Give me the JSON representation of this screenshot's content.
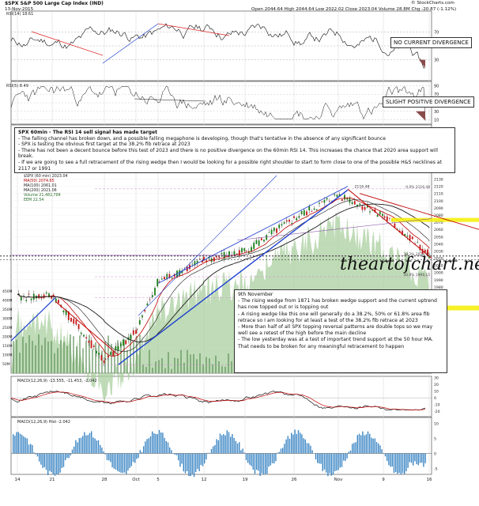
{
  "header": {
    "symbol": "$SPX S&P 500 Large Cap Index (IND)",
    "date": "13-Nov-2015",
    "quote": "Open 2044.64  High 2044.64  Low 2022.02  Close 2023.04  Volume 28.8M  Chg -20.87 (-1.12%)",
    "credit": "© StockCharts.com"
  },
  "panels": {
    "rsi14": {
      "legend": "RSI(14) 18.61",
      "label": "NO CURRENT DIVERGENCE"
    },
    "rsi5": {
      "legend": "RSI(5) 8.49",
      "label": "SLIGHT POSITIVE DIVERGENCE"
    },
    "price_legend": [
      "$SPX (60 min) 2023.04",
      "MA(50) 2074.65",
      "MA(100) 2061.01",
      "MA(200) 2021.06",
      "Volume 21,482,784",
      "EEM 22.54"
    ],
    "macd1": {
      "legend": "MACD(12,26,9) -13.555, -11.453, -2.042"
    },
    "macd2": {
      "legend": "MACD(12,26,9) Hist -2.042"
    }
  },
  "annotations": {
    "top": {
      "title": "SPX 60min - The RSI 14 sell signal has made target",
      "lines": [
        "- The falling channel has broken down, and a possible falling megaphone is developing, though that's tentative in the absence of any significant bounce",
        "- SPX is testing the obvious first target at the 38.2% fib retrace at 2023",
        "- There has not been a decent bounce before this test of 2023 and there is no positive divergence on the 60min RSI 14. This increases the chance that 2020 area support will break.",
        "- If we are going to see a full retracement of the rising wedge then I would be looking for a possible right shoulder to start to form close to one of the possible H&S necklines at 2117 or 1991"
      ]
    },
    "bottom": {
      "title": "9th November",
      "lines": [
        "- The rising wedge from 1871 has broken wedge support and the current uptrend has now topped out or is topping out",
        "- A rising wedge like this one will generally do a 38.2%, 50% or 61.8% area fib retrace so I am looking for at least a test of the 38.2% fib retrace at 2023",
        "- More than half of all SPX topping reversal patterns are double tops so we may well see a retest of the high before the main decline",
        "- The low yesterday was at a test of important trend support at the 50 hour MA. That needs to be broken for any meaningful retracement to happen"
      ]
    }
  },
  "watermark": "theartofchart.net",
  "fib_labels": [
    "0.0% 2116.48",
    "38.2% 2023.04",
    "50.0% 1994.15",
    "61.8% 1965.26",
    "100.0% 1871.91"
  ],
  "top_label": "2116.48",
  "chart_data": [
    {
      "type": "line",
      "panel": "RSI(14)",
      "y_range": [
        0,
        100
      ],
      "y_ticks": [
        70,
        50,
        30
      ],
      "last_value": 18.61
    },
    {
      "type": "line",
      "panel": "RSI(5)",
      "y_range": [
        0,
        100
      ],
      "y_ticks": [
        90,
        70,
        50,
        30,
        10
      ],
      "last_value": 8.49
    },
    {
      "type": "bar",
      "panel": "price 60min candlesticks",
      "y_range": [
        1860,
        2135
      ],
      "y_ticks": [
        2130,
        2120,
        2110,
        2100,
        2090,
        2080,
        2070,
        2060,
        2050,
        2040,
        2030,
        2020,
        2010,
        2000,
        1990,
        1980,
        1970,
        1960,
        1950,
        1940,
        1930,
        1920,
        1910,
        1900,
        1890,
        1880
      ],
      "volume_ticks": [
        "450M",
        "400M",
        "350M",
        "300M",
        "250M",
        "200M",
        "150M",
        "100M",
        "50M"
      ],
      "x_ticks": [
        "14",
        "21",
        "28",
        "Oct",
        "5",
        "12",
        "19",
        "26",
        "Nov",
        "9",
        "16"
      ],
      "price_points": [
        {
          "label": "14",
          "value": 1965
        },
        {
          "label": "21",
          "value": 1968
        },
        {
          "label": "28",
          "value": 1876
        },
        {
          "label": "Oct",
          "value": 1920
        },
        {
          "label": "5",
          "value": 1988
        },
        {
          "label": "12",
          "value": 2017
        },
        {
          "label": "19",
          "value": 2030
        },
        {
          "label": "26",
          "value": 2075
        },
        {
          "label": "Nov",
          "value": 2108
        },
        {
          "label": "9",
          "value": 2079
        },
        {
          "label": "16",
          "value": 2023
        }
      ],
      "last_value": 2023.04
    },
    {
      "type": "line",
      "panel": "MACD(12,26,9)",
      "y_ticks": [
        30,
        20,
        10,
        0,
        -10,
        -20
      ],
      "last_values": {
        "macd": -13.555,
        "signal": -11.453,
        "hist": -2.042
      }
    },
    {
      "type": "bar",
      "panel": "MACD(12,26,9) Hist",
      "y_ticks": [
        10,
        5,
        0,
        -5
      ],
      "last_value": -2.042
    }
  ]
}
